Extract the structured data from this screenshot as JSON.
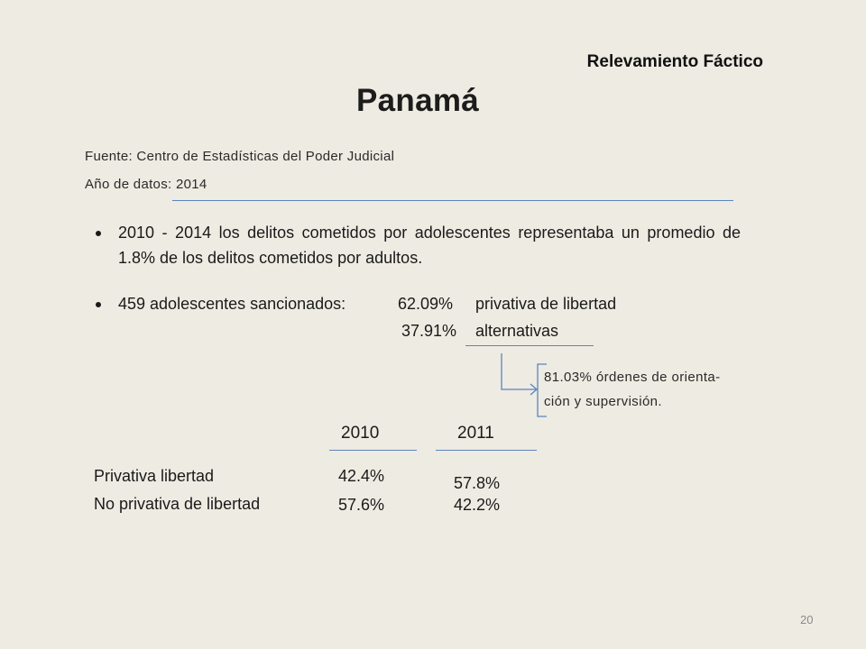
{
  "header": {
    "subheading": "Relevamiento Fáctico",
    "title": "Panamá",
    "source_line": "Fuente: Centro de Estadísticas del Poder Judicial",
    "year_line": "Año de datos: 2014"
  },
  "bullets": {
    "first": "2010 - 2014 los delitos cometidos por adolescentes representaba un promedio de 1.8% de los delitos cometidos por adultos.",
    "second_prefix": "459 adolescentes sancionados:",
    "second_pct_1": "62.09%",
    "second_label_1": "privativa de libertad",
    "second_pct_2": "37.91%",
    "second_label_2": "alternativas"
  },
  "note": {
    "line1": "81.03% órdenes de orienta-",
    "line2": "ción y supervisión."
  },
  "table": {
    "col_2010": "2010",
    "col_2011": "2011",
    "row1_label": "Privativa libertad",
    "row1_2010": "42.4%",
    "row1_2011": "57.8%",
    "row2_label": "No privativa de libertad",
    "row2_2010": "57.6%",
    "row2_2011": "42.2%"
  },
  "footer": {
    "page_number": "20"
  },
  "colors": {
    "background": "#eeebe2",
    "rule": "#5b84bf"
  }
}
